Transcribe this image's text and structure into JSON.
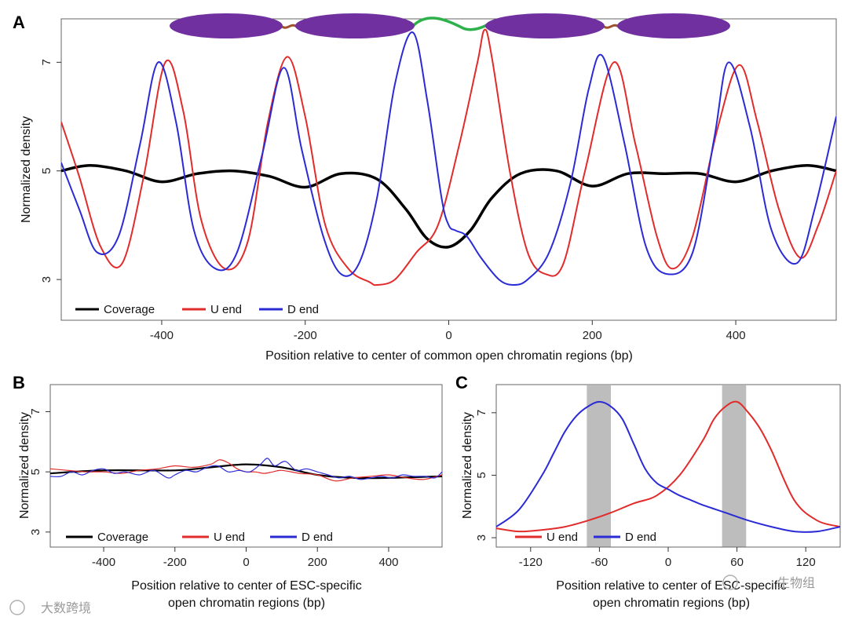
{
  "chart_data": [
    {
      "panel": "A",
      "type": "line",
      "xlabel": "Position relative to center of common open chromatin regions (bp)",
      "ylabel": "Normalized density",
      "xlim": [
        -540,
        540
      ],
      "ylim": [
        2.25,
        7.8
      ],
      "xticks": [
        -400,
        -200,
        0,
        200,
        400
      ],
      "yticks": [
        3,
        5,
        7
      ],
      "grid": false,
      "legend": "bottom-left",
      "series": [
        {
          "name": "Coverage",
          "color": "#000000",
          "x": [
            -540,
            -500,
            -450,
            -400,
            -350,
            -300,
            -250,
            -200,
            -150,
            -100,
            -60,
            -30,
            0,
            30,
            60,
            100,
            150,
            200,
            250,
            300,
            350,
            400,
            450,
            500,
            540
          ],
          "y": [
            5.0,
            5.1,
            5.0,
            4.8,
            4.95,
            5.0,
            4.9,
            4.7,
            4.95,
            4.85,
            4.3,
            3.75,
            3.6,
            3.9,
            4.5,
            4.95,
            5.0,
            4.72,
            4.95,
            4.95,
            4.95,
            4.8,
            5.0,
            5.1,
            5.0
          ]
        },
        {
          "name": "U end",
          "color": "#e22b2b",
          "x": [
            -540,
            -515,
            -485,
            -455,
            -425,
            -395,
            -370,
            -345,
            -312,
            -280,
            -252,
            -225,
            -200,
            -172,
            -140,
            -110,
            -100,
            -75,
            -45,
            -15,
            15,
            40,
            50,
            60,
            85,
            110,
            135,
            160,
            190,
            230,
            260,
            290,
            312,
            340,
            375,
            405,
            430,
            460,
            490,
            515,
            540
          ],
          "y": [
            5.9,
            4.9,
            3.6,
            3.3,
            4.9,
            7.0,
            6.1,
            4.1,
            3.2,
            3.7,
            5.9,
            7.1,
            6.0,
            4.0,
            3.2,
            2.95,
            2.9,
            3.0,
            3.5,
            4.0,
            5.5,
            7.0,
            7.6,
            7.1,
            5.0,
            3.5,
            3.1,
            3.3,
            5.0,
            7.0,
            5.5,
            3.8,
            3.2,
            3.8,
            5.8,
            6.95,
            5.9,
            4.3,
            3.4,
            4.0,
            5.0
          ]
        },
        {
          "name": "D end",
          "color": "#2b2bd6",
          "x": [
            -540,
            -515,
            -490,
            -460,
            -430,
            -405,
            -380,
            -355,
            -325,
            -295,
            -260,
            -230,
            -205,
            -175,
            -150,
            -125,
            -100,
            -75,
            -50,
            -30,
            -10,
            0,
            10,
            25,
            45,
            70,
            90,
            110,
            140,
            170,
            195,
            215,
            245,
            275,
            305,
            340,
            370,
            390,
            420,
            450,
            485,
            510,
            540
          ],
          "y": [
            5.15,
            4.3,
            3.5,
            3.8,
            5.5,
            7.0,
            5.9,
            3.9,
            3.2,
            3.5,
            5.3,
            6.9,
            5.4,
            3.8,
            3.1,
            3.3,
            4.5,
            6.6,
            7.55,
            6.3,
            4.5,
            4.0,
            3.9,
            3.8,
            3.4,
            3.0,
            2.9,
            3.0,
            3.5,
            4.8,
            6.5,
            7.1,
            5.5,
            3.6,
            3.1,
            3.5,
            5.6,
            7.0,
            5.8,
            3.9,
            3.3,
            4.3,
            6.0
          ]
        }
      ]
    },
    {
      "panel": "B",
      "type": "line",
      "xlabel": "Position relative to center of ESC-specific open chromatin regions (bp)",
      "ylabel": "Normalized density",
      "xlim": [
        -550,
        550
      ],
      "ylim": [
        2.5,
        7.9
      ],
      "xticks": [
        -400,
        -200,
        0,
        200,
        400
      ],
      "yticks": [
        3,
        5,
        7
      ],
      "grid": false,
      "legend": "bottom",
      "series": [
        {
          "name": "Coverage",
          "color": "#000000",
          "x": [
            -550,
            -400,
            -200,
            -100,
            0,
            100,
            200,
            300,
            400,
            550
          ],
          "y": [
            4.95,
            5.05,
            5.05,
            5.15,
            5.25,
            5.15,
            4.9,
            4.8,
            4.8,
            4.85
          ]
        },
        {
          "name": "U end",
          "color": "#e22b2b",
          "x": [
            -550,
            -500,
            -450,
            -400,
            -350,
            -300,
            -250,
            -200,
            -150,
            -100,
            -75,
            -50,
            -25,
            0,
            25,
            50,
            75,
            100,
            150,
            200,
            250,
            300,
            350,
            400,
            450,
            500,
            550
          ],
          "y": [
            5.1,
            5.05,
            5.0,
            5.0,
            4.95,
            5.05,
            5.1,
            5.2,
            5.15,
            5.25,
            5.4,
            5.3,
            5.1,
            5.0,
            5.0,
            4.95,
            5.0,
            5.05,
            4.95,
            4.9,
            4.7,
            4.8,
            4.85,
            4.9,
            4.8,
            4.75,
            4.9
          ]
        },
        {
          "name": "D end",
          "color": "#2b2bd6",
          "x": [
            -550,
            -520,
            -490,
            -460,
            -430,
            -400,
            -370,
            -340,
            -300,
            -260,
            -220,
            -200,
            -170,
            -140,
            -110,
            -80,
            -50,
            -20,
            10,
            40,
            60,
            80,
            110,
            140,
            170,
            200,
            230,
            260,
            290,
            320,
            350,
            380,
            410,
            440,
            470,
            500,
            530,
            550
          ],
          "y": [
            4.85,
            4.85,
            5.0,
            4.9,
            5.05,
            5.1,
            4.95,
            5.0,
            4.9,
            5.05,
            4.8,
            4.9,
            5.05,
            5.0,
            5.15,
            5.2,
            5.0,
            5.05,
            5.0,
            5.25,
            5.45,
            5.2,
            5.35,
            5.05,
            5.1,
            5.0,
            4.9,
            4.8,
            4.85,
            4.75,
            4.8,
            4.85,
            4.8,
            4.9,
            4.85,
            4.85,
            4.8,
            5.0
          ]
        }
      ]
    },
    {
      "panel": "C",
      "type": "line",
      "xlabel": "Position relative to center of ESC-specific open chromatin regions (bp)",
      "ylabel": "Normalized density",
      "xlim": [
        -150,
        150
      ],
      "ylim": [
        2.7,
        7.9
      ],
      "xticks": [
        -120,
        -60,
        0,
        60,
        120
      ],
      "yticks": [
        3,
        5,
        7
      ],
      "grid": false,
      "legend": "bottom-left",
      "shaded_regions": [
        [
          -71,
          -50
        ],
        [
          47,
          68
        ]
      ],
      "series": [
        {
          "name": "U end",
          "color": "#e22b2b",
          "x": [
            -150,
            -130,
            -110,
            -90,
            -70,
            -50,
            -30,
            -10,
            10,
            30,
            40,
            50,
            60,
            70,
            80,
            90,
            110,
            130,
            150
          ],
          "y": [
            3.3,
            3.2,
            3.25,
            3.35,
            3.55,
            3.8,
            4.1,
            4.35,
            5.0,
            6.1,
            6.8,
            7.2,
            7.35,
            7.0,
            6.5,
            5.8,
            4.2,
            3.55,
            3.35
          ]
        },
        {
          "name": "D end",
          "color": "#2b2bd6",
          "x": [
            -150,
            -130,
            -110,
            -100,
            -90,
            -80,
            -70,
            -60,
            -50,
            -40,
            -30,
            -20,
            -10,
            0,
            10,
            20,
            30,
            50,
            70,
            90,
            110,
            130,
            150
          ],
          "y": [
            3.35,
            3.9,
            5.0,
            5.7,
            6.4,
            6.9,
            7.2,
            7.35,
            7.2,
            6.8,
            6.0,
            5.2,
            4.75,
            4.55,
            4.35,
            4.2,
            4.05,
            3.8,
            3.55,
            3.35,
            3.2,
            3.2,
            3.35
          ]
        }
      ]
    }
  ],
  "labels": {
    "panel_a": "A",
    "panel_b": "B",
    "panel_c": "C",
    "b_xlabel_line1": "Position relative to center of ESC-specific",
    "b_xlabel_line2": "open chromatin regions (bp)",
    "c_xlabel_line1": "Position relative to center of ESC-specific",
    "c_xlabel_line2": "open chromatin regions (bp)"
  },
  "nucleosome_diagram": {
    "nucleosome_color": "#7030a0",
    "short_linker_color": "#a0522d",
    "open_linker_color": "#2db14a"
  },
  "watermarks": {
    "left": "大数跨境",
    "right": "生物组"
  }
}
